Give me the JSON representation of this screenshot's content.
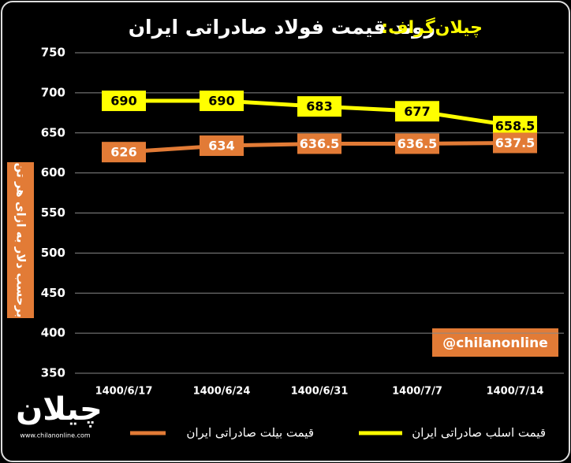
{
  "chart_data": {
    "type": "line",
    "title_prefix": "چیلان‌گراف:",
    "title": "روند قیمت فولاد صادراتی ایران",
    "y_label": "برحسب دلار به ازای هر تن",
    "watermark": "@chilanonline",
    "logo_text": "چیلان",
    "logo_url": "www.chilanonline.com",
    "categories": [
      "1400/6/17",
      "1400/6/24",
      "1400/6/31",
      "1400/7/7",
      "1400/7/14"
    ],
    "series": [
      {
        "name": "قیمت اسلب صادراتی ایران",
        "color": "#ffff00",
        "label_text_color": "#000000",
        "values": [
          690,
          690,
          683,
          677,
          658.5
        ]
      },
      {
        "name": "قیمت بیلت صادراتی ایران",
        "color": "#e27b36",
        "label_text_color": "#ffffff",
        "values": [
          626,
          634,
          636.5,
          636.5,
          637.5
        ]
      }
    ],
    "ylim": [
      350,
      750
    ],
    "yticks": [
      350,
      400,
      450,
      500,
      550,
      600,
      650,
      700,
      750
    ],
    "grid": true
  }
}
